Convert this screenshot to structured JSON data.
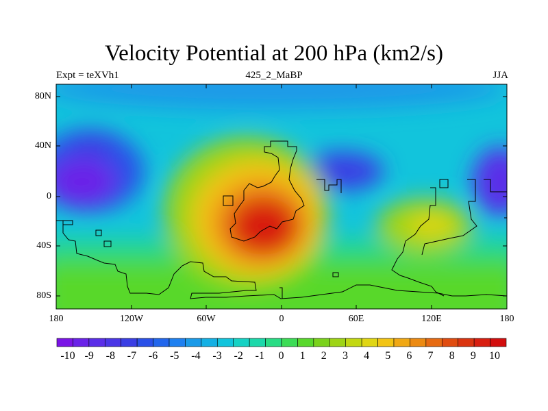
{
  "title": "Velocity Potential at 200 hPa (km2/s)",
  "subtitle_left": "Expt = teXVh1",
  "subtitle_center": "425_2_MaBP",
  "subtitle_right": "JJA",
  "axes": {
    "lat_ticks": [
      "80N",
      "40N",
      "0",
      "40S",
      "80S"
    ],
    "lon_ticks": [
      "180",
      "120W",
      "60W",
      "0",
      "60E",
      "120E",
      "180"
    ]
  },
  "colorbar": {
    "labels": [
      "-10",
      "-9",
      "-8",
      "-7",
      "-6",
      "-5",
      "-4",
      "-3",
      "-2",
      "-1",
      "0",
      "1",
      "2",
      "3",
      "4",
      "5",
      "6",
      "7",
      "8",
      "9",
      "10"
    ],
    "colors": [
      "#7a14e6",
      "#6a22e8",
      "#5a2ee8",
      "#4a36e6",
      "#3a3ee4",
      "#2a50e8",
      "#2266ec",
      "#1e80f0",
      "#1a9ae8",
      "#14b0e4",
      "#12c4dc",
      "#16d2c4",
      "#1cd8aa",
      "#28dc84",
      "#3cdc56",
      "#58d82c",
      "#7ad21c",
      "#9ed416",
      "#c2d812",
      "#e0d614",
      "#f2c414",
      "#f0a814",
      "#ec8a12",
      "#e66a12",
      "#e04c10",
      "#da3410",
      "#d81e10",
      "#d20e0e"
    ]
  }
}
